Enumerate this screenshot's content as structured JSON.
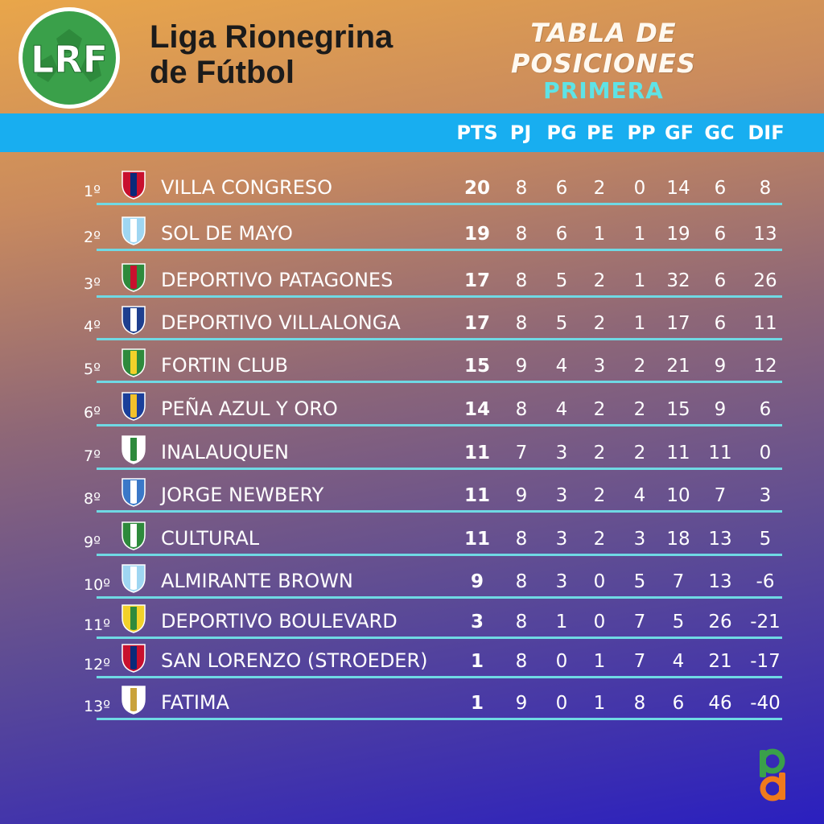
{
  "header": {
    "logo_text": "LRF",
    "league_name_line1": "Liga Rionegrina",
    "league_name_line2": "de Fútbol",
    "title": "TABLA DE POSICIONES",
    "division": "PRIMERA"
  },
  "columns": [
    "PTS",
    "PJ",
    "PG",
    "PE",
    "PP",
    "GF",
    "GC",
    "DIF"
  ],
  "rows": [
    {
      "pos": "1º",
      "team": "VILLA CONGRESO",
      "crest": "villa-congreso-crest-icon",
      "pts": "20",
      "pj": "8",
      "pg": "6",
      "pe": "2",
      "pp": "0",
      "gf": "14",
      "gc": "6",
      "dif": "8"
    },
    {
      "pos": "2º",
      "team": "SOL DE MAYO",
      "crest": "sol-de-mayo-crest-icon",
      "pts": "19",
      "pj": "8",
      "pg": "6",
      "pe": "1",
      "pp": "1",
      "gf": "19",
      "gc": "6",
      "dif": "13"
    },
    {
      "pos": "3º",
      "team": "DEPORTIVO PATAGONES",
      "crest": "deportivo-patagones-crest-icon",
      "pts": "17",
      "pj": "8",
      "pg": "5",
      "pe": "2",
      "pp": "1",
      "gf": "32",
      "gc": "6",
      "dif": "26"
    },
    {
      "pos": "4º",
      "team": "DEPORTIVO VILLALONGA",
      "crest": "deportivo-villalonga-crest-icon",
      "pts": "17",
      "pj": "8",
      "pg": "5",
      "pe": "2",
      "pp": "1",
      "gf": "17",
      "gc": "6",
      "dif": "11"
    },
    {
      "pos": "5º",
      "team": "FORTIN CLUB",
      "crest": "fortin-club-crest-icon",
      "pts": "15",
      "pj": "9",
      "pg": "4",
      "pe": "3",
      "pp": "2",
      "gf": "21",
      "gc": "9",
      "dif": "12"
    },
    {
      "pos": "6º",
      "team": "PEÑA AZUL Y ORO",
      "crest": "pena-azul-y-oro-crest-icon",
      "pts": "14",
      "pj": "8",
      "pg": "4",
      "pe": "2",
      "pp": "2",
      "gf": "15",
      "gc": "9",
      "dif": "6"
    },
    {
      "pos": "7º",
      "team": "INALAUQUEN",
      "crest": "inalauquen-crest-icon",
      "pts": "11",
      "pj": "7",
      "pg": "3",
      "pe": "2",
      "pp": "2",
      "gf": "11",
      "gc": "11",
      "dif": "0"
    },
    {
      "pos": "8º",
      "team": "JORGE NEWBERY",
      "crest": "jorge-newbery-crest-icon",
      "pts": "11",
      "pj": "9",
      "pg": "3",
      "pe": "2",
      "pp": "4",
      "gf": "10",
      "gc": "7",
      "dif": "3"
    },
    {
      "pos": "9º",
      "team": "CULTURAL",
      "crest": "cultural-crest-icon",
      "pts": "11",
      "pj": "8",
      "pg": "3",
      "pe": "2",
      "pp": "3",
      "gf": "18",
      "gc": "13",
      "dif": "5"
    },
    {
      "pos": "10º",
      "team": "ALMIRANTE BROWN",
      "crest": "almirante-brown-crest-icon",
      "pts": "9",
      "pj": "8",
      "pg": "3",
      "pe": "0",
      "pp": "5",
      "gf": "7",
      "gc": "13",
      "dif": "-6"
    },
    {
      "pos": "11º",
      "team": "DEPORTIVO BOULEVARD",
      "crest": "deportivo-boulevard-crest-icon",
      "pts": "3",
      "pj": "8",
      "pg": "1",
      "pe": "0",
      "pp": "7",
      "gf": "5",
      "gc": "26",
      "dif": "-21"
    },
    {
      "pos": "12º",
      "team": "SAN LORENZO (STROEDER)",
      "crest": "san-lorenzo-crest-icon",
      "pts": "1",
      "pj": "8",
      "pg": "0",
      "pe": "1",
      "pp": "7",
      "gf": "4",
      "gc": "21",
      "dif": "-17"
    },
    {
      "pos": "13º",
      "team": "FATIMA",
      "crest": "fatima-crest-icon",
      "pts": "1",
      "pj": "9",
      "pg": "0",
      "pe": "1",
      "pp": "8",
      "gf": "6",
      "gc": "46",
      "dif": "-40"
    }
  ],
  "footer": {
    "brand_logo": "pd-logo-icon"
  },
  "colors": {
    "header_bar": "#18aef0",
    "division_text": "#5ee3e6",
    "row_line": "#6fd9e4",
    "logo_green": "#3aa04a"
  }
}
